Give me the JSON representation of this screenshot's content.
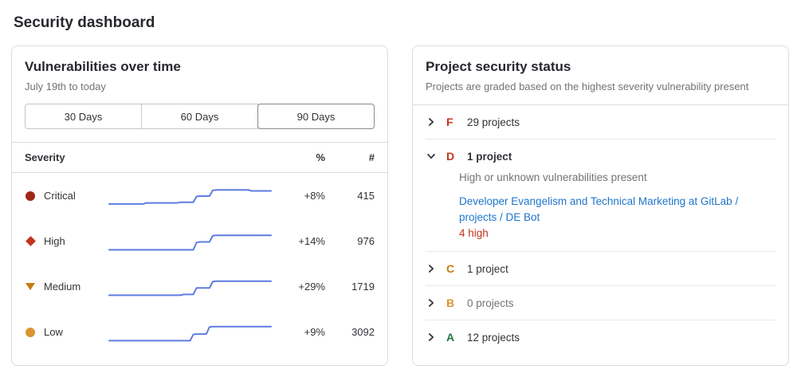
{
  "page": {
    "title": "Security dashboard"
  },
  "colors": {
    "link": "#1f75cb",
    "divider": "#dcdcde",
    "sparkline": "#5e7ce0"
  },
  "vulnerabilities_panel": {
    "title": "Vulnerabilities over time",
    "subtitle": "July 19th to today",
    "range_buttons": [
      {
        "label": "30 Days",
        "selected": false
      },
      {
        "label": "60 Days",
        "selected": false
      },
      {
        "label": "90 Days",
        "selected": true
      }
    ],
    "table": {
      "headers": {
        "severity": "Severity",
        "percent": "%",
        "count": "#"
      },
      "rows": [
        {
          "severity": "Critical",
          "icon": "severity-critical-icon",
          "icon_color": "#9e2818",
          "percent": "+8%",
          "count": "415"
        },
        {
          "severity": "High",
          "icon": "severity-high-icon",
          "icon_color": "#c0341d",
          "percent": "+14%",
          "count": "976"
        },
        {
          "severity": "Medium",
          "icon": "severity-medium-icon",
          "icon_color": "#c17d10",
          "percent": "+29%",
          "count": "1719"
        },
        {
          "severity": "Low",
          "icon": "severity-low-icon",
          "icon_color": "#d99530",
          "percent": "+9%",
          "count": "3092"
        }
      ]
    }
  },
  "chart_data": {
    "type": "line",
    "title": "Vulnerabilities over time",
    "x_range": "July 19th to today (90 days)",
    "line_color": "#5e7ce0",
    "note": "sparkline step trends, points are [x 0-100, y 0-100 bottom-up] relative positions",
    "series": [
      {
        "name": "Critical",
        "change": "+8%",
        "current": 415,
        "points": [
          [
            0,
            12
          ],
          [
            21,
            12
          ],
          [
            23,
            17
          ],
          [
            42,
            17
          ],
          [
            44,
            20
          ],
          [
            52,
            20
          ],
          [
            54,
            48
          ],
          [
            56,
            50
          ],
          [
            62,
            50
          ],
          [
            64,
            78
          ],
          [
            67,
            80
          ],
          [
            86,
            80
          ],
          [
            88,
            75
          ],
          [
            100,
            75
          ]
        ]
      },
      {
        "name": "High",
        "change": "+14%",
        "current": 976,
        "points": [
          [
            0,
            10
          ],
          [
            52,
            10
          ],
          [
            54,
            45
          ],
          [
            56,
            48
          ],
          [
            62,
            48
          ],
          [
            64,
            78
          ],
          [
            66,
            80
          ],
          [
            100,
            80
          ]
        ]
      },
      {
        "name": "Medium",
        "change": "+29%",
        "current": 1719,
        "points": [
          [
            0,
            10
          ],
          [
            44,
            10
          ],
          [
            46,
            14
          ],
          [
            52,
            14
          ],
          [
            54,
            45
          ],
          [
            62,
            45
          ],
          [
            64,
            76
          ],
          [
            66,
            78
          ],
          [
            100,
            78
          ]
        ]
      },
      {
        "name": "Low",
        "change": "+9%",
        "current": 3092,
        "points": [
          [
            0,
            10
          ],
          [
            50,
            10
          ],
          [
            52,
            40
          ],
          [
            54,
            42
          ],
          [
            60,
            42
          ],
          [
            62,
            76
          ],
          [
            64,
            78
          ],
          [
            100,
            78
          ]
        ]
      }
    ]
  },
  "project_status_panel": {
    "title": "Project security status",
    "subtitle": "Projects are graded based on the highest severity vulnerability present",
    "grades": [
      {
        "grade": "F",
        "color": "#c0341d",
        "label": "29 projects",
        "expanded": false,
        "muted": false
      },
      {
        "grade": "D",
        "color": "#c0341d",
        "label": "1 project",
        "expanded": true,
        "muted": false,
        "description": "High or unknown vulnerabilities present",
        "link": "Developer Evangelism and Technical Marketing at GitLab / projects / DE Bot",
        "detail": "4 high",
        "detail_color": "#c0341d"
      },
      {
        "grade": "C",
        "color": "#c17d10",
        "label": "1 project",
        "expanded": false,
        "muted": false
      },
      {
        "grade": "B",
        "color": "#d99530",
        "label": "0 projects",
        "expanded": false,
        "muted": true
      },
      {
        "grade": "A",
        "color": "#217645",
        "label": "12 projects",
        "expanded": false,
        "muted": false
      }
    ]
  }
}
